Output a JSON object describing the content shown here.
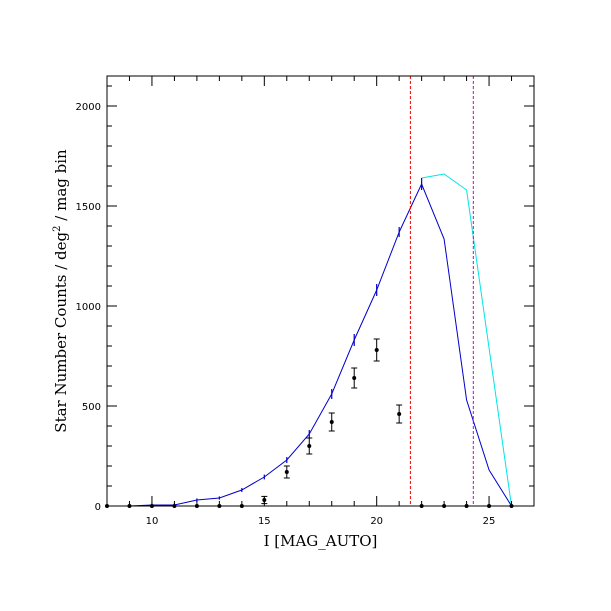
{
  "chart_data": {
    "type": "line",
    "title": "",
    "xlabel": "I [MAG_AUTO]",
    "ylabel_main": "Star Number Counts / deg",
    "ylabel_sup": "2",
    "ylabel_tail": " / mag bin",
    "xlim": [
      8,
      27
    ],
    "ylim": [
      0,
      2150
    ],
    "x_major_ticks": [
      10,
      15,
      20,
      25
    ],
    "y_major_ticks": [
      0,
      500,
      1000,
      1500,
      2000
    ],
    "x_tick_labels": [
      "10",
      "15",
      "20",
      "25"
    ],
    "y_tick_labels": [
      "0",
      "500",
      "1000",
      "1500",
      "2000"
    ],
    "x_minor_step": 1,
    "y_minor_step": 100,
    "grid": false,
    "series": [
      {
        "kind": "line",
        "color": "#00e5e5",
        "x": [
          22,
          23,
          24,
          26
        ],
        "y": [
          1640,
          1660,
          1580,
          0
        ]
      },
      {
        "kind": "line",
        "color": "#0000cc",
        "x": [
          8,
          9,
          10,
          11,
          12,
          13,
          14,
          15,
          16,
          17,
          18,
          19,
          20,
          21,
          22,
          23,
          24,
          25,
          26
        ],
        "y": [
          0,
          0,
          5,
          5,
          30,
          40,
          80,
          145,
          230,
          360,
          560,
          830,
          1080,
          1370,
          1610,
          1335,
          530,
          180,
          0
        ],
        "error_bars": [
          {
            "x": 10,
            "y": 5,
            "err": 8
          },
          {
            "x": 11,
            "y": 5,
            "err": 8
          },
          {
            "x": 12,
            "y": 30,
            "err": 8
          },
          {
            "x": 13,
            "y": 40,
            "err": 8
          },
          {
            "x": 14,
            "y": 80,
            "err": 10
          },
          {
            "x": 15,
            "y": 145,
            "err": 12
          },
          {
            "x": 16,
            "y": 230,
            "err": 15
          },
          {
            "x": 17,
            "y": 360,
            "err": 20
          },
          {
            "x": 18,
            "y": 560,
            "err": 25
          },
          {
            "x": 19,
            "y": 830,
            "err": 30
          },
          {
            "x": 20,
            "y": 1080,
            "err": 30
          },
          {
            "x": 21,
            "y": 1370,
            "err": 25
          },
          {
            "x": 22,
            "y": 1610,
            "err": 30
          }
        ]
      },
      {
        "kind": "points",
        "color": "#000000",
        "x": [
          8,
          9,
          10,
          11,
          12,
          13,
          14,
          15,
          16,
          17,
          18,
          19,
          20,
          21,
          22,
          23,
          24,
          25,
          26
        ],
        "y": [
          0,
          0,
          0,
          0,
          0,
          0,
          0,
          30,
          170,
          300,
          420,
          640,
          780,
          460,
          0,
          0,
          0,
          0,
          0
        ],
        "err": [
          0,
          0,
          0,
          0,
          0,
          0,
          0,
          18,
          30,
          40,
          45,
          50,
          55,
          45,
          0,
          0,
          0,
          0,
          0
        ]
      }
    ],
    "vlines": [
      {
        "x": 21.5,
        "color": "#ee0000",
        "dash": "3,2"
      },
      {
        "x": 24.3,
        "color": "#cc00cc",
        "dash": "3,2"
      }
    ]
  }
}
